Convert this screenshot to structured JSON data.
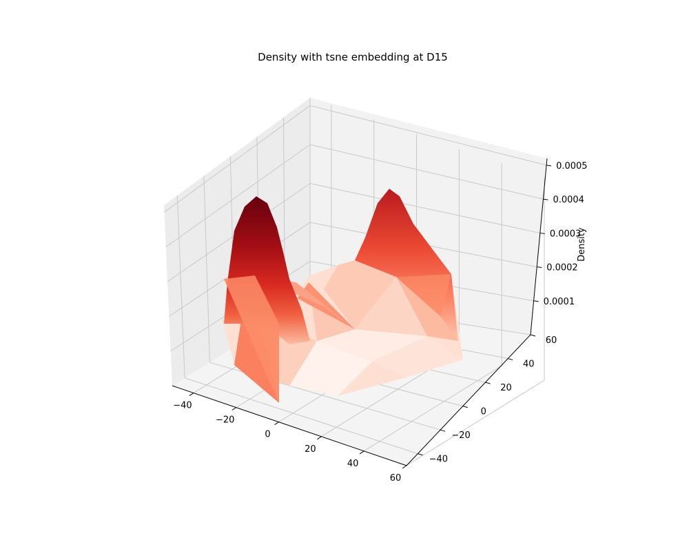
{
  "chart_data": {
    "type": "surface3d",
    "title": "Density with tsne embedding at D15",
    "xlabel": "",
    "ylabel": "",
    "zlabel": "Density",
    "colormap": "Reds",
    "x_ticks": [
      "−40",
      "−20",
      "0",
      "20",
      "40",
      "60"
    ],
    "y_ticks": [
      "−40",
      "−20",
      "0",
      "20",
      "40",
      "60"
    ],
    "z_ticks": [
      "0.0001",
      "0.0002",
      "0.0003",
      "0.0004",
      "0.0005"
    ],
    "xlim": [
      -50,
      60
    ],
    "ylim": [
      -50,
      60
    ],
    "zlim": [
      0,
      0.00052
    ],
    "peaks": [
      {
        "name": "left peak",
        "x": -24,
        "y": 42,
        "density": 0.00052
      },
      {
        "name": "right peak",
        "x": 40,
        "y": 50,
        "density": 0.00045
      }
    ],
    "colors": {
      "pane_left": "#ececec",
      "pane_back": "#f2f2f2",
      "pane_floor": "#f4f4f4",
      "grid": "#c8c8c8",
      "low": "#fff5f0",
      "high": "#67000d"
    }
  }
}
